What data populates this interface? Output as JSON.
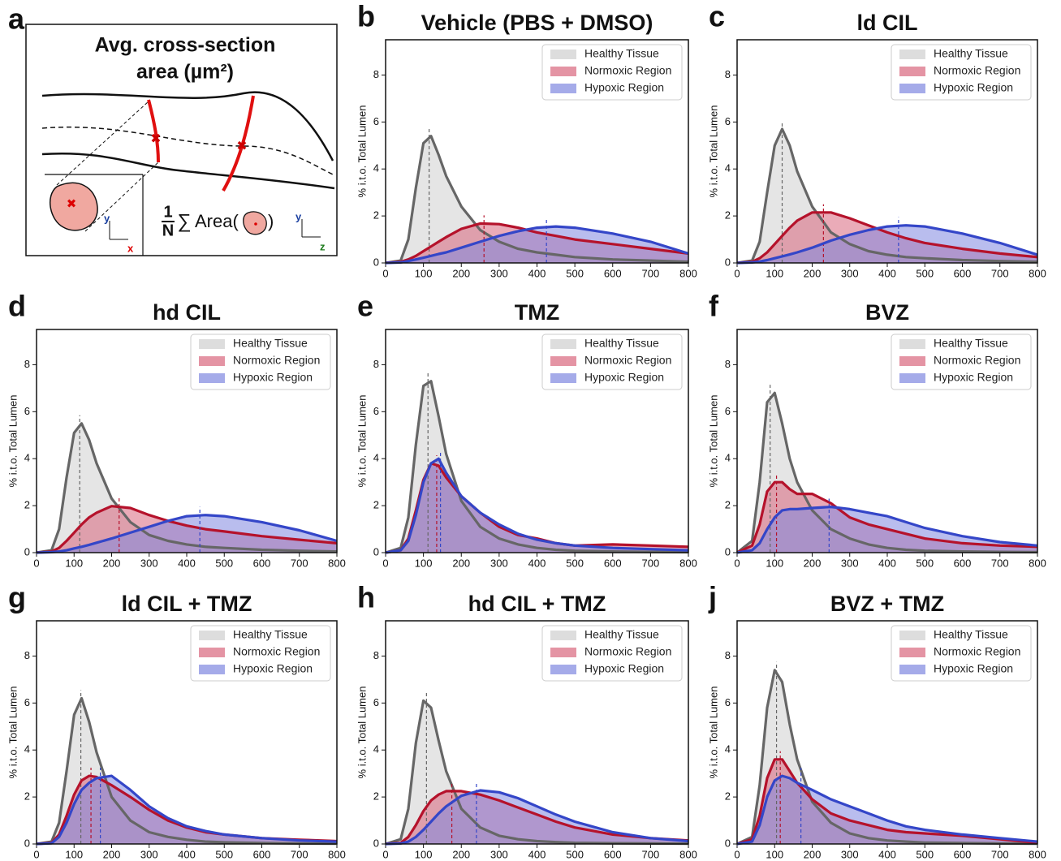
{
  "diagram": {
    "panel_label": "a",
    "title_lines": [
      "Avg. cross-section",
      "area (µm²)"
    ],
    "formula": {
      "numerator": "1",
      "denominator": "N",
      "sum": "∑",
      "text": "Area(",
      "close": ")"
    },
    "axes": [
      "y",
      "x",
      "y",
      "z"
    ]
  },
  "chart_data": [
    {
      "type": "area",
      "panel_label": "b",
      "title": "Vehicle (PBS + DMSO)",
      "y_label": "% i.t.o. Total Lumen",
      "legend": "upper right",
      "xlim": [
        0,
        800
      ],
      "xticks": [
        0,
        100,
        200,
        300,
        400,
        500,
        600,
        700,
        800
      ],
      "ylim": [
        0,
        9.5
      ],
      "yticks": [
        0,
        2,
        4,
        6,
        8
      ],
      "x": [
        0,
        40,
        60,
        80,
        100,
        120,
        140,
        160,
        200,
        250,
        300,
        350,
        400,
        450,
        500,
        600,
        700,
        800
      ],
      "series": [
        {
          "name": "Healthy Tissue",
          "color": "#666666",
          "peak_x": 115,
          "values": [
            0,
            0.1,
            1.0,
            3.2,
            5.1,
            5.4,
            4.6,
            3.7,
            2.4,
            1.4,
            0.9,
            0.6,
            0.45,
            0.35,
            0.25,
            0.15,
            0.1,
            0.05
          ]
        },
        {
          "name": "Normoxic Region",
          "color": "#b5122b",
          "peak_x": 260,
          "values": [
            0,
            0.05,
            0.15,
            0.3,
            0.5,
            0.7,
            0.9,
            1.1,
            1.45,
            1.68,
            1.65,
            1.5,
            1.3,
            1.15,
            1.0,
            0.8,
            0.6,
            0.4
          ]
        },
        {
          "name": "Hypoxic Region",
          "color": "#3446c8",
          "peak_x": 425,
          "values": [
            0,
            0.02,
            0.08,
            0.15,
            0.22,
            0.3,
            0.38,
            0.45,
            0.65,
            0.9,
            1.15,
            1.35,
            1.5,
            1.55,
            1.5,
            1.25,
            0.9,
            0.4
          ]
        }
      ]
    },
    {
      "type": "area",
      "panel_label": "c",
      "title": "ld CIL",
      "y_label": "% i.t.o. Total Lumen",
      "legend": "upper right",
      "xlim": [
        0,
        800
      ],
      "xticks": [
        0,
        100,
        200,
        300,
        400,
        500,
        600,
        700,
        800
      ],
      "ylim": [
        0,
        9.5
      ],
      "yticks": [
        0,
        2,
        4,
        6,
        8
      ],
      "x": [
        0,
        40,
        60,
        80,
        100,
        120,
        140,
        160,
        200,
        250,
        300,
        350,
        400,
        450,
        500,
        600,
        700,
        800
      ],
      "series": [
        {
          "name": "Healthy Tissue",
          "color": "#666666",
          "peak_x": 120,
          "values": [
            0,
            0.1,
            0.9,
            3.0,
            5.0,
            5.7,
            5.0,
            3.9,
            2.4,
            1.3,
            0.8,
            0.5,
            0.35,
            0.25,
            0.2,
            0.12,
            0.08,
            0.05
          ]
        },
        {
          "name": "Normoxic Region",
          "color": "#b5122b",
          "peak_x": 230,
          "values": [
            0,
            0.05,
            0.2,
            0.45,
            0.8,
            1.15,
            1.5,
            1.8,
            2.15,
            2.15,
            1.9,
            1.6,
            1.3,
            1.05,
            0.85,
            0.6,
            0.4,
            0.25
          ]
        },
        {
          "name": "Hypoxic Region",
          "color": "#3446c8",
          "peak_x": 430,
          "values": [
            0,
            0.02,
            0.06,
            0.12,
            0.2,
            0.28,
            0.36,
            0.45,
            0.65,
            0.95,
            1.2,
            1.4,
            1.55,
            1.6,
            1.55,
            1.25,
            0.85,
            0.35
          ]
        }
      ]
    },
    {
      "type": "area",
      "panel_label": "d",
      "title": "hd CIL",
      "y_label": "% i.t.o. Total Lumen",
      "legend": "upper right",
      "xlim": [
        0,
        800
      ],
      "xticks": [
        0,
        100,
        200,
        300,
        400,
        500,
        600,
        700,
        800
      ],
      "ylim": [
        0,
        9.5
      ],
      "yticks": [
        0,
        2,
        4,
        6,
        8
      ],
      "x": [
        0,
        40,
        60,
        80,
        100,
        120,
        140,
        160,
        200,
        250,
        300,
        350,
        400,
        450,
        500,
        600,
        700,
        800
      ],
      "series": [
        {
          "name": "Healthy Tissue",
          "color": "#666666",
          "peak_x": 115,
          "values": [
            0,
            0.1,
            1.0,
            3.2,
            5.1,
            5.5,
            4.8,
            3.8,
            2.3,
            1.3,
            0.75,
            0.5,
            0.35,
            0.25,
            0.2,
            0.12,
            0.08,
            0.05
          ]
        },
        {
          "name": "Normoxic Region",
          "color": "#b5122b",
          "peak_x": 220,
          "values": [
            0,
            0.05,
            0.2,
            0.5,
            0.85,
            1.2,
            1.5,
            1.7,
            1.98,
            1.9,
            1.6,
            1.35,
            1.15,
            1.0,
            0.9,
            0.7,
            0.55,
            0.4
          ]
        },
        {
          "name": "Hypoxic Region",
          "color": "#3446c8",
          "peak_x": 435,
          "values": [
            0,
            0.02,
            0.05,
            0.1,
            0.18,
            0.25,
            0.33,
            0.42,
            0.6,
            0.85,
            1.1,
            1.35,
            1.55,
            1.6,
            1.55,
            1.3,
            0.95,
            0.5
          ]
        }
      ]
    },
    {
      "type": "area",
      "panel_label": "e",
      "title": "TMZ",
      "y_label": "% i.t.o. Total Lumen",
      "legend": "upper right",
      "xlim": [
        0,
        800
      ],
      "xticks": [
        0,
        100,
        200,
        300,
        400,
        500,
        600,
        700,
        800
      ],
      "ylim": [
        0,
        9.5
      ],
      "yticks": [
        0,
        2,
        4,
        6,
        8
      ],
      "x": [
        0,
        40,
        60,
        80,
        100,
        120,
        140,
        160,
        200,
        250,
        300,
        350,
        400,
        450,
        500,
        600,
        700,
        800
      ],
      "series": [
        {
          "name": "Healthy Tissue",
          "color": "#666666",
          "peak_x": 112,
          "values": [
            0,
            0.2,
            1.5,
            4.6,
            7.1,
            7.3,
            5.8,
            4.2,
            2.2,
            1.1,
            0.6,
            0.35,
            0.2,
            0.12,
            0.08,
            0.05,
            0.03,
            0.02
          ]
        },
        {
          "name": "Normoxic Region",
          "color": "#b5122b",
          "peak_x": 135,
          "values": [
            0,
            0.1,
            0.6,
            1.8,
            3.1,
            3.8,
            3.7,
            3.2,
            2.4,
            1.7,
            1.1,
            0.75,
            0.6,
            0.4,
            0.3,
            0.35,
            0.3,
            0.25
          ]
        },
        {
          "name": "Hypoxic Region",
          "color": "#3446c8",
          "peak_x": 145,
          "values": [
            0,
            0.1,
            0.5,
            1.6,
            3.0,
            3.8,
            4.0,
            3.4,
            2.4,
            1.7,
            1.2,
            0.8,
            0.55,
            0.4,
            0.3,
            0.2,
            0.15,
            0.1
          ]
        }
      ]
    },
    {
      "type": "area",
      "panel_label": "f",
      "title": "BVZ",
      "y_label": "% i.t.o. Total Lumen",
      "legend": "upper right",
      "xlim": [
        0,
        800
      ],
      "xticks": [
        0,
        100,
        200,
        300,
        400,
        500,
        600,
        700,
        800
      ],
      "ylim": [
        0,
        9.5
      ],
      "yticks": [
        0,
        2,
        4,
        6,
        8
      ],
      "x": [
        0,
        40,
        60,
        80,
        100,
        120,
        140,
        160,
        200,
        250,
        300,
        350,
        400,
        450,
        500,
        600,
        700,
        800
      ],
      "series": [
        {
          "name": "Healthy Tissue",
          "color": "#666666",
          "peak_x": 88,
          "values": [
            0,
            0.5,
            3.0,
            6.4,
            6.8,
            5.5,
            4.0,
            3.0,
            1.8,
            1.0,
            0.6,
            0.35,
            0.2,
            0.12,
            0.08,
            0.05,
            0.03,
            0.02
          ]
        },
        {
          "name": "Normoxic Region",
          "color": "#b5122b",
          "peak_x": 105,
          "values": [
            0,
            0.3,
            1.2,
            2.6,
            3.0,
            3.0,
            2.7,
            2.5,
            2.5,
            2.1,
            1.5,
            1.2,
            1.0,
            0.8,
            0.6,
            0.4,
            0.3,
            0.25
          ]
        },
        {
          "name": "Hypoxic Region",
          "color": "#3446c8",
          "peak_x": 245,
          "values": [
            0,
            0.1,
            0.4,
            1.0,
            1.5,
            1.8,
            1.85,
            1.85,
            1.9,
            1.95,
            1.85,
            1.7,
            1.55,
            1.3,
            1.05,
            0.7,
            0.45,
            0.3
          ]
        }
      ]
    },
    {
      "type": "area",
      "panel_label": "g",
      "title": "ld CIL + TMZ",
      "y_label": "% i.t.o. Total Lumen",
      "legend": "upper right",
      "xlim": [
        0,
        800
      ],
      "xticks": [
        0,
        100,
        200,
        300,
        400,
        500,
        600,
        700,
        800
      ],
      "ylim": [
        0,
        9.5
      ],
      "yticks": [
        0,
        2,
        4,
        6,
        8
      ],
      "x": [
        0,
        40,
        60,
        80,
        100,
        120,
        140,
        160,
        200,
        250,
        300,
        350,
        400,
        450,
        500,
        600,
        700,
        800
      ],
      "series": [
        {
          "name": "Healthy Tissue",
          "color": "#666666",
          "peak_x": 118,
          "values": [
            0,
            0.1,
            0.9,
            3.1,
            5.5,
            6.2,
            5.2,
            3.9,
            2.0,
            1.0,
            0.5,
            0.3,
            0.18,
            0.1,
            0.07,
            0.04,
            0.02,
            0.01
          ]
        },
        {
          "name": "Normoxic Region",
          "color": "#b5122b",
          "peak_x": 145,
          "values": [
            0,
            0.05,
            0.4,
            1.2,
            2.1,
            2.7,
            2.9,
            2.85,
            2.5,
            2.0,
            1.45,
            1.0,
            0.7,
            0.5,
            0.4,
            0.25,
            0.18,
            0.12
          ]
        },
        {
          "name": "Hypoxic Region",
          "color": "#3446c8",
          "peak_x": 170,
          "values": [
            0,
            0.03,
            0.3,
            0.9,
            1.7,
            2.3,
            2.6,
            2.8,
            2.9,
            2.3,
            1.6,
            1.1,
            0.75,
            0.55,
            0.4,
            0.25,
            0.15,
            0.1
          ]
        }
      ]
    },
    {
      "type": "area",
      "panel_label": "h",
      "title": "hd CIL + TMZ",
      "y_label": "% i.t.o. Total Lumen",
      "legend": "upper right",
      "xlim": [
        0,
        800
      ],
      "xticks": [
        0,
        100,
        200,
        300,
        400,
        500,
        600,
        700,
        800
      ],
      "ylim": [
        0,
        9.5
      ],
      "yticks": [
        0,
        2,
        4,
        6,
        8
      ],
      "x": [
        0,
        40,
        60,
        80,
        100,
        120,
        140,
        160,
        200,
        250,
        300,
        350,
        400,
        450,
        500,
        600,
        700,
        800
      ],
      "series": [
        {
          "name": "Healthy Tissue",
          "color": "#666666",
          "peak_x": 108,
          "values": [
            0,
            0.2,
            1.5,
            4.3,
            6.1,
            5.8,
            4.4,
            3.1,
            1.5,
            0.7,
            0.35,
            0.2,
            0.12,
            0.08,
            0.05,
            0.03,
            0.02,
            0.01
          ]
        },
        {
          "name": "Normoxic Region",
          "color": "#b5122b",
          "peak_x": 175,
          "values": [
            0,
            0.05,
            0.3,
            0.8,
            1.4,
            1.85,
            2.1,
            2.25,
            2.25,
            2.1,
            1.85,
            1.55,
            1.25,
            0.95,
            0.7,
            0.4,
            0.25,
            0.15
          ]
        },
        {
          "name": "Hypoxic Region",
          "color": "#3446c8",
          "peak_x": 240,
          "values": [
            0,
            0.02,
            0.1,
            0.3,
            0.6,
            0.95,
            1.3,
            1.6,
            2.05,
            2.28,
            2.2,
            1.95,
            1.6,
            1.25,
            0.95,
            0.5,
            0.25,
            0.12
          ]
        }
      ]
    },
    {
      "type": "area",
      "panel_label": "j",
      "title": "BVZ + TMZ",
      "y_label": "% i.t.o. Total Lumen",
      "legend": "upper right",
      "xlim": [
        0,
        800
      ],
      "xticks": [
        0,
        100,
        200,
        300,
        400,
        500,
        600,
        700,
        800
      ],
      "ylim": [
        0,
        9.5
      ],
      "yticks": [
        0,
        2,
        4,
        6,
        8
      ],
      "x": [
        0,
        40,
        60,
        80,
        100,
        120,
        140,
        160,
        200,
        250,
        300,
        350,
        400,
        450,
        500,
        600,
        700,
        800
      ],
      "series": [
        {
          "name": "Healthy Tissue",
          "color": "#666666",
          "peak_x": 105,
          "values": [
            0,
            0.3,
            2.5,
            5.8,
            7.4,
            6.9,
            5.1,
            3.6,
            1.8,
            0.9,
            0.45,
            0.25,
            0.15,
            0.1,
            0.06,
            0.04,
            0.02,
            0.01
          ]
        },
        {
          "name": "Normoxic Region",
          "color": "#b5122b",
          "peak_x": 115,
          "values": [
            0,
            0.2,
            1.2,
            2.8,
            3.6,
            3.6,
            3.1,
            2.6,
            1.9,
            1.3,
            1.0,
            0.8,
            0.6,
            0.5,
            0.45,
            0.35,
            0.2,
            0.05
          ]
        },
        {
          "name": "Hypoxic Region",
          "color": "#3446c8",
          "peak_x": 170,
          "values": [
            0,
            0.1,
            0.8,
            2.0,
            2.7,
            2.9,
            2.8,
            2.6,
            2.3,
            1.9,
            1.6,
            1.3,
            1.0,
            0.75,
            0.6,
            0.4,
            0.25,
            0.1
          ]
        }
      ]
    }
  ]
}
